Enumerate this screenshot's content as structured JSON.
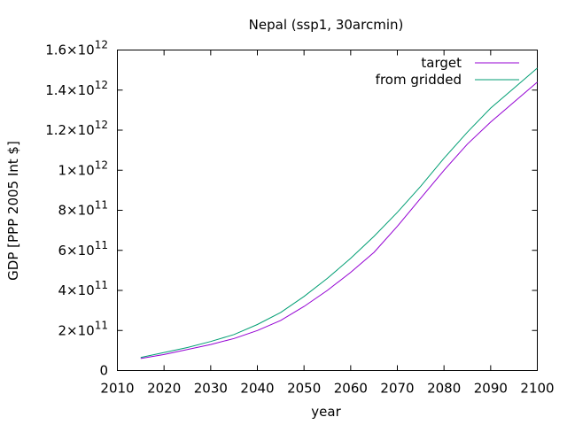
{
  "chart_data": {
    "type": "line",
    "title": "Nepal (ssp1, 30arcmin)",
    "xlabel": "year",
    "ylabel": "GDP [PPP 2005 Int $]",
    "xlim": [
      2010,
      2100
    ],
    "ylim": [
      0,
      1600000000000
    ],
    "x_ticks": [
      2010,
      2020,
      2030,
      2040,
      2050,
      2060,
      2070,
      2080,
      2090,
      2100
    ],
    "y_ticks": [
      {
        "value": 0,
        "mantissa": "0",
        "exponent": ""
      },
      {
        "value": 200000000000,
        "mantissa": "2×10",
        "exponent": "11"
      },
      {
        "value": 400000000000,
        "mantissa": "4×10",
        "exponent": "11"
      },
      {
        "value": 600000000000,
        "mantissa": "6×10",
        "exponent": "11"
      },
      {
        "value": 800000000000,
        "mantissa": "8×10",
        "exponent": "11"
      },
      {
        "value": 1000000000000,
        "mantissa": "1×10",
        "exponent": "12"
      },
      {
        "value": 1200000000000,
        "mantissa": "1.2×10",
        "exponent": "12"
      },
      {
        "value": 1400000000000,
        "mantissa": "1.4×10",
        "exponent": "12"
      },
      {
        "value": 1600000000000,
        "mantissa": "1.6×10",
        "exponent": "12"
      }
    ],
    "grid": false,
    "legend_position": "top-right",
    "x": [
      2015,
      2020,
      2025,
      2030,
      2035,
      2040,
      2045,
      2050,
      2055,
      2060,
      2065,
      2070,
      2075,
      2080,
      2085,
      2090,
      2095,
      2100
    ],
    "series": [
      {
        "name": "target",
        "color": "#9400d3",
        "values": [
          60000000000,
          80000000000,
          105000000000,
          130000000000,
          160000000000,
          200000000000,
          250000000000,
          320000000000,
          400000000000,
          490000000000,
          590000000000,
          720000000000,
          860000000000,
          1000000000000,
          1130000000000,
          1240000000000,
          1340000000000,
          1440000000000
        ]
      },
      {
        "name": "from gridded",
        "color": "#009e73",
        "values": [
          65000000000,
          90000000000,
          115000000000,
          145000000000,
          180000000000,
          230000000000,
          290000000000,
          370000000000,
          460000000000,
          560000000000,
          670000000000,
          790000000000,
          920000000000,
          1060000000000,
          1190000000000,
          1310000000000,
          1410000000000,
          1510000000000
        ]
      }
    ]
  }
}
